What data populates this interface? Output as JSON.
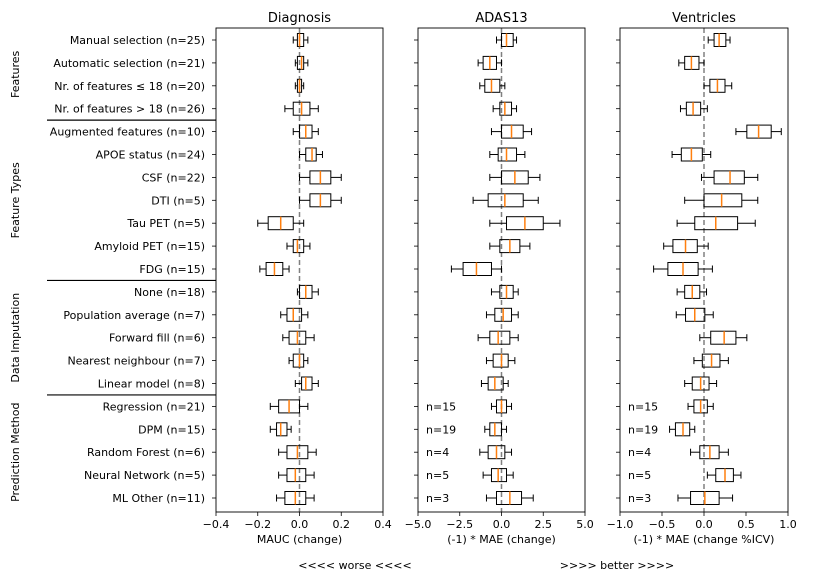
{
  "chart_data": {
    "type": "boxplot",
    "orientation": "horizontal",
    "row_labels": [
      "Manual selection (n=25)",
      "Automatic selection (n=21)",
      "Nr. of features ≤ 18 (n=20)",
      "Nr. of features > 18 (n=26)",
      "Augmented features (n=10)",
      "APOE status (n=24)",
      "CSF (n=22)",
      "DTI (n=5)",
      "Tau PET (n=5)",
      "Amyloid PET (n=15)",
      "FDG (n=15)",
      "None (n=18)",
      "Population average (n=7)",
      "Forward fill (n=6)",
      "Nearest neighbour (n=7)",
      "Linear model (n=8)",
      "Regression (n=21)",
      "DPM (n=15)",
      "Random Forest (n=6)",
      "Neural Network (n=5)",
      "ML Other (n=11)"
    ],
    "groups": [
      {
        "name": "Features",
        "rows": [
          0,
          3
        ]
      },
      {
        "name": "Feature Types",
        "rows": [
          4,
          10
        ]
      },
      {
        "name": "Data Imputation",
        "rows": [
          11,
          15
        ]
      },
      {
        "name": "Prediction Method",
        "rows": [
          16,
          20
        ]
      }
    ],
    "panels": [
      {
        "title": "Diagnosis",
        "xlabel": "MAUC (change)",
        "xlim": [
          -0.4,
          0.4
        ],
        "xticks": [
          "-0.4",
          "-0.2",
          "0.0",
          "0.2",
          "0.4"
        ],
        "xtick_values": [
          -0.4,
          -0.2,
          0.0,
          0.2,
          0.4
        ],
        "annotations": [],
        "boxes": [
          [
            -0.03,
            -0.01,
            0.0,
            0.02,
            0.04
          ],
          [
            -0.02,
            -0.01,
            0.01,
            0.02,
            0.04
          ],
          [
            -0.02,
            -0.01,
            0.0,
            0.01,
            0.02
          ],
          [
            -0.07,
            -0.03,
            0.01,
            0.05,
            0.09
          ],
          [
            -0.03,
            0.0,
            0.03,
            0.06,
            0.09
          ],
          [
            0.0,
            0.03,
            0.06,
            0.08,
            0.11
          ],
          [
            0.0,
            0.05,
            0.1,
            0.15,
            0.2
          ],
          [
            0.0,
            0.05,
            0.1,
            0.15,
            0.2
          ],
          [
            -0.2,
            -0.15,
            -0.09,
            -0.03,
            0.02
          ],
          [
            -0.06,
            -0.03,
            -0.01,
            0.02,
            0.05
          ],
          [
            -0.19,
            -0.16,
            -0.12,
            -0.08,
            -0.05
          ],
          [
            -0.01,
            0.0,
            0.03,
            0.06,
            0.09
          ],
          [
            -0.09,
            -0.06,
            -0.03,
            0.01,
            0.04
          ],
          [
            -0.08,
            -0.05,
            -0.01,
            0.03,
            0.07
          ],
          [
            -0.05,
            -0.03,
            0.0,
            0.02,
            0.04
          ],
          [
            -0.02,
            0.01,
            0.03,
            0.06,
            0.09
          ],
          [
            -0.14,
            -0.1,
            -0.05,
            0.0,
            0.04
          ],
          [
            -0.14,
            -0.11,
            -0.09,
            -0.06,
            -0.04
          ],
          [
            -0.1,
            -0.06,
            -0.01,
            0.04,
            0.08
          ],
          [
            -0.1,
            -0.06,
            -0.02,
            0.03,
            0.07
          ],
          [
            -0.11,
            -0.07,
            -0.02,
            0.03,
            0.07
          ]
        ]
      },
      {
        "title": "ADAS13",
        "xlabel": "(-1) * MAE (change)",
        "xlim": [
          -5.0,
          5.0
        ],
        "xticks": [
          "-5.0",
          "-2.5",
          "0.0",
          "2.5",
          "5.0"
        ],
        "xtick_values": [
          -5.0,
          -2.5,
          0.0,
          2.5,
          5.0
        ],
        "annotations": [
          {
            "row": 16,
            "text": "n=15"
          },
          {
            "row": 17,
            "text": "n=19"
          },
          {
            "row": 18,
            "text": "n=4"
          },
          {
            "row": 19,
            "text": "n=5"
          },
          {
            "row": 20,
            "text": "n=3"
          }
        ],
        "boxes": [
          [
            -0.3,
            0.0,
            0.3,
            0.7,
            0.9
          ],
          [
            -1.4,
            -1.1,
            -0.7,
            -0.3,
            0.0
          ],
          [
            -1.3,
            -1.0,
            -0.6,
            -0.1,
            0.2
          ],
          [
            -0.5,
            -0.1,
            0.2,
            0.6,
            0.9
          ],
          [
            -0.6,
            0.0,
            0.6,
            1.3,
            1.8
          ],
          [
            -0.7,
            -0.2,
            0.3,
            0.9,
            1.4
          ],
          [
            -0.7,
            0.0,
            0.8,
            1.6,
            2.3
          ],
          [
            -1.7,
            -0.8,
            0.2,
            1.3,
            2.2
          ],
          [
            -0.7,
            0.3,
            1.4,
            2.5,
            3.5
          ],
          [
            -0.7,
            -0.1,
            0.5,
            1.1,
            1.7
          ],
          [
            -3.0,
            -2.3,
            -1.5,
            -0.6,
            0.0
          ],
          [
            -0.6,
            -0.1,
            0.3,
            0.7,
            1.0
          ],
          [
            -0.9,
            -0.4,
            0.1,
            0.6,
            1.0
          ],
          [
            -1.4,
            -0.7,
            -0.2,
            0.5,
            1.0
          ],
          [
            -0.9,
            -0.5,
            0.0,
            0.4,
            0.8
          ],
          [
            -1.2,
            -0.8,
            -0.4,
            0.1,
            0.4
          ],
          [
            -0.6,
            -0.3,
            0.0,
            0.3,
            0.6
          ],
          [
            -1.0,
            -0.7,
            -0.4,
            0.0,
            0.3
          ],
          [
            -1.3,
            -0.8,
            -0.3,
            0.2,
            0.6
          ],
          [
            -1.1,
            -0.6,
            -0.2,
            0.3,
            0.7
          ],
          [
            -0.9,
            -0.3,
            0.5,
            1.2,
            1.9
          ]
        ]
      },
      {
        "title": "Ventricles",
        "xlabel": "(-1) * MAE (change %ICV)",
        "xlim": [
          -1.0,
          1.0
        ],
        "xticks": [
          "-1.0",
          "-0.5",
          "0.0",
          "0.5",
          "1.0"
        ],
        "xtick_values": [
          -1.0,
          -0.5,
          0.0,
          0.5,
          1.0
        ],
        "annotations": [
          {
            "row": 16,
            "text": "n=15"
          },
          {
            "row": 17,
            "text": "n=19"
          },
          {
            "row": 18,
            "text": "n=4"
          },
          {
            "row": 19,
            "text": "n=5"
          },
          {
            "row": 20,
            "text": "n=3"
          }
        ],
        "boxes": [
          [
            0.05,
            0.12,
            0.18,
            0.26,
            0.31
          ],
          [
            -0.3,
            -0.23,
            -0.15,
            -0.06,
            0.0
          ],
          [
            0.0,
            0.07,
            0.16,
            0.25,
            0.33
          ],
          [
            -0.28,
            -0.21,
            -0.13,
            -0.04,
            0.04
          ],
          [
            0.38,
            0.51,
            0.65,
            0.8,
            0.92
          ],
          [
            -0.38,
            -0.27,
            -0.15,
            -0.02,
            0.08
          ],
          [
            -0.03,
            0.12,
            0.31,
            0.48,
            0.64
          ],
          [
            -0.23,
            0.0,
            0.21,
            0.45,
            0.64
          ],
          [
            -0.32,
            -0.11,
            0.14,
            0.4,
            0.61
          ],
          [
            -0.48,
            -0.37,
            -0.22,
            -0.08,
            0.05
          ],
          [
            -0.6,
            -0.43,
            -0.25,
            -0.07,
            0.1
          ],
          [
            -0.32,
            -0.23,
            -0.14,
            -0.05,
            0.03
          ],
          [
            -0.33,
            -0.22,
            -0.11,
            0.01,
            0.11
          ],
          [
            -0.05,
            0.08,
            0.24,
            0.38,
            0.51
          ],
          [
            -0.12,
            -0.02,
            0.09,
            0.19,
            0.29
          ],
          [
            -0.23,
            -0.14,
            -0.04,
            0.06,
            0.15
          ],
          [
            -0.19,
            -0.12,
            -0.04,
            0.04,
            0.11
          ],
          [
            -0.41,
            -0.34,
            -0.25,
            -0.17,
            -0.11
          ],
          [
            -0.16,
            -0.05,
            0.07,
            0.18,
            0.29
          ],
          [
            0.04,
            0.14,
            0.25,
            0.35,
            0.44
          ],
          [
            -0.31,
            -0.16,
            0.01,
            0.18,
            0.34
          ]
        ]
      }
    ],
    "reference_line": 0.0,
    "box_format": [
      "whisker_low",
      "q1",
      "median",
      "q3",
      "whisker_high"
    ],
    "footer_left": "<<<< worse <<<<",
    "footer_right": ">>>> better >>>>",
    "colors": {
      "box": "#000000",
      "median": "#ff7f0e",
      "reference": "#808080"
    }
  }
}
